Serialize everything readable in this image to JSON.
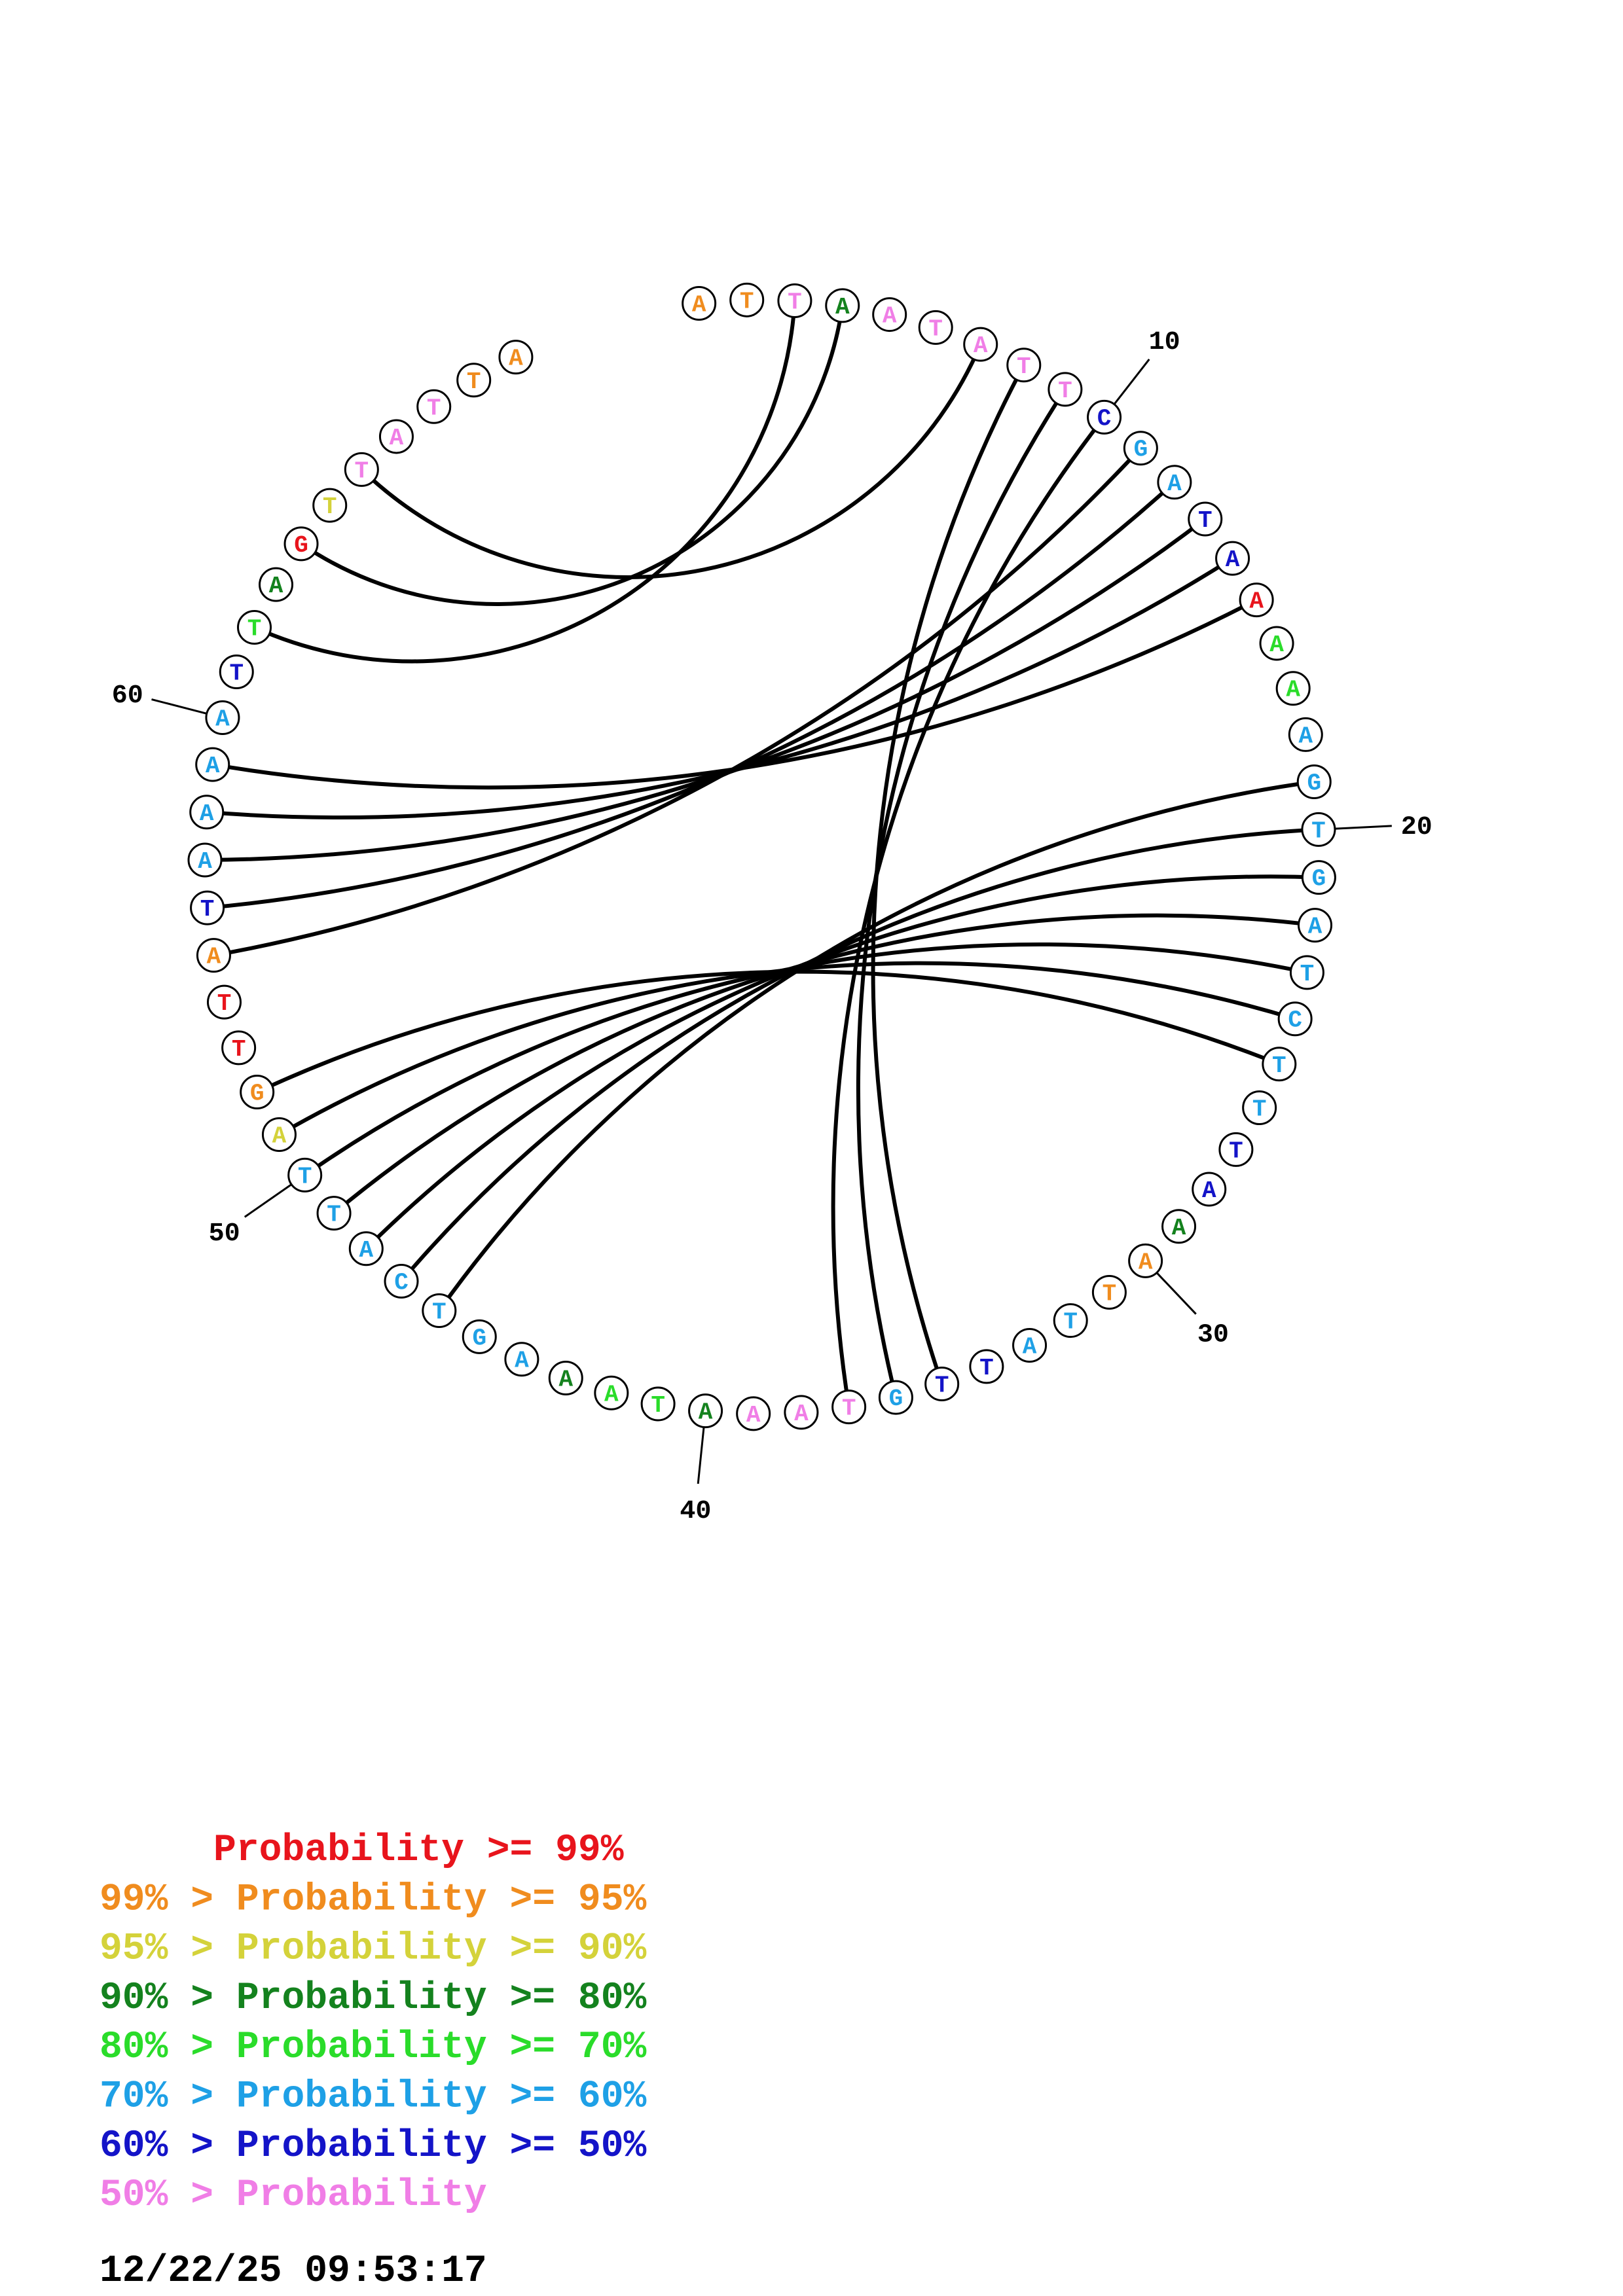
{
  "sequence": "ATTAATATTCGATAAAAAGTGATCTTTAAATTATTGTAAATAAAGTCATTAGTTATAAAATTAGTTATTA",
  "base_probability_class": [
    1,
    1,
    7,
    3,
    7,
    7,
    7,
    7,
    7,
    6,
    5,
    5,
    6,
    6,
    0,
    4,
    4,
    5,
    5,
    5,
    5,
    5,
    5,
    5,
    5,
    5,
    6,
    6,
    3,
    1,
    1,
    5,
    5,
    6,
    6,
    5,
    7,
    7,
    7,
    3,
    4,
    4,
    3,
    5,
    5,
    5,
    5,
    5,
    5,
    5,
    2,
    1,
    0,
    0,
    1,
    6,
    5,
    5,
    5,
    5,
    6,
    4,
    3,
    0,
    2,
    7,
    7,
    7,
    1,
    1
  ],
  "pairs": [
    [
      3,
      62
    ],
    [
      4,
      64
    ],
    [
      7,
      66
    ],
    [
      8,
      35
    ],
    [
      9,
      36
    ],
    [
      10,
      37
    ],
    [
      11,
      55
    ],
    [
      12,
      56
    ],
    [
      13,
      57
    ],
    [
      14,
      58
    ],
    [
      15,
      59
    ],
    [
      19,
      46
    ],
    [
      20,
      47
    ],
    [
      21,
      48
    ],
    [
      22,
      49
    ],
    [
      23,
      50
    ],
    [
      24,
      51
    ],
    [
      25,
      52
    ]
  ],
  "position_labels": [
    "10",
    "20",
    "30",
    "40",
    "50",
    "60"
  ],
  "palette": [
    "#e8141c",
    "#f08c1e",
    "#d4d23a",
    "#14821e",
    "#2adc2a",
    "#1ea0e6",
    "#1414c8",
    "#f07ee6"
  ],
  "legend": [
    {
      "prefix": "     ",
      "text": "Probability >= 99%"
    },
    {
      "prefix": "99% > ",
      "text": "Probability >= 95%"
    },
    {
      "prefix": "95% > ",
      "text": "Probability >= 90%"
    },
    {
      "prefix": "90% > ",
      "text": "Probability >= 80%"
    },
    {
      "prefix": "80% > ",
      "text": "Probability >= 70%"
    },
    {
      "prefix": "70% > ",
      "text": "Probability >= 60%"
    },
    {
      "prefix": "60% > ",
      "text": "Probability >= 50%"
    },
    {
      "prefix": "50% > ",
      "text": "Probability"
    }
  ],
  "timestamp": "12/22/25 09:53:17"
}
